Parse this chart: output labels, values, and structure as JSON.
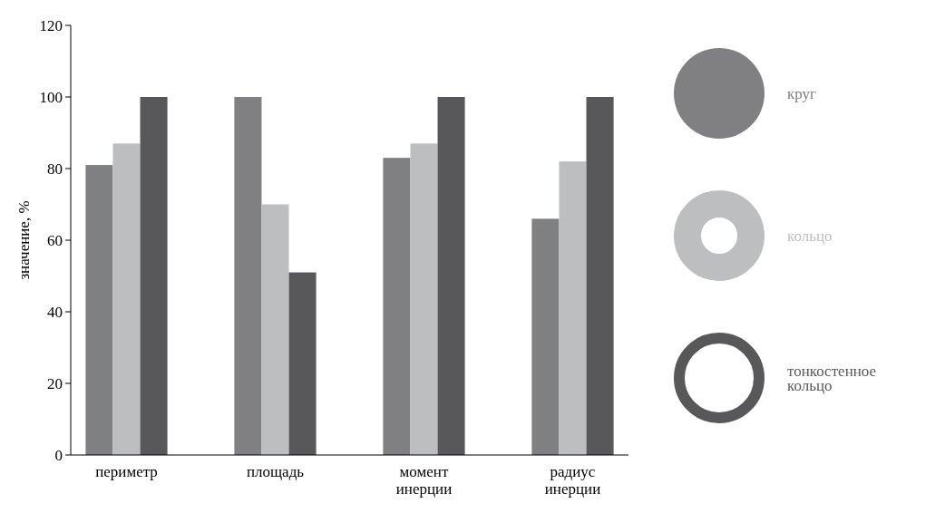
{
  "chart_data": {
    "type": "bar",
    "ylabel": "значение, %",
    "categories": [
      "периметр",
      "площадь",
      "момент инерции",
      "радиус инерции"
    ],
    "series": [
      {
        "name": "круг",
        "color": "#808083",
        "values": [
          81,
          100,
          83,
          66
        ]
      },
      {
        "name": "кольцо",
        "color": "#bdbec0",
        "values": [
          87,
          70,
          87,
          82
        ]
      },
      {
        "name": "тонкостенное кольцо",
        "color": "#58585a",
        "values": [
          100,
          51,
          100,
          100
        ]
      }
    ],
    "ylim": [
      0,
      120
    ],
    "yticks": [
      0,
      20,
      40,
      60,
      80,
      100,
      120
    ],
    "grid": false,
    "legend": "right"
  }
}
